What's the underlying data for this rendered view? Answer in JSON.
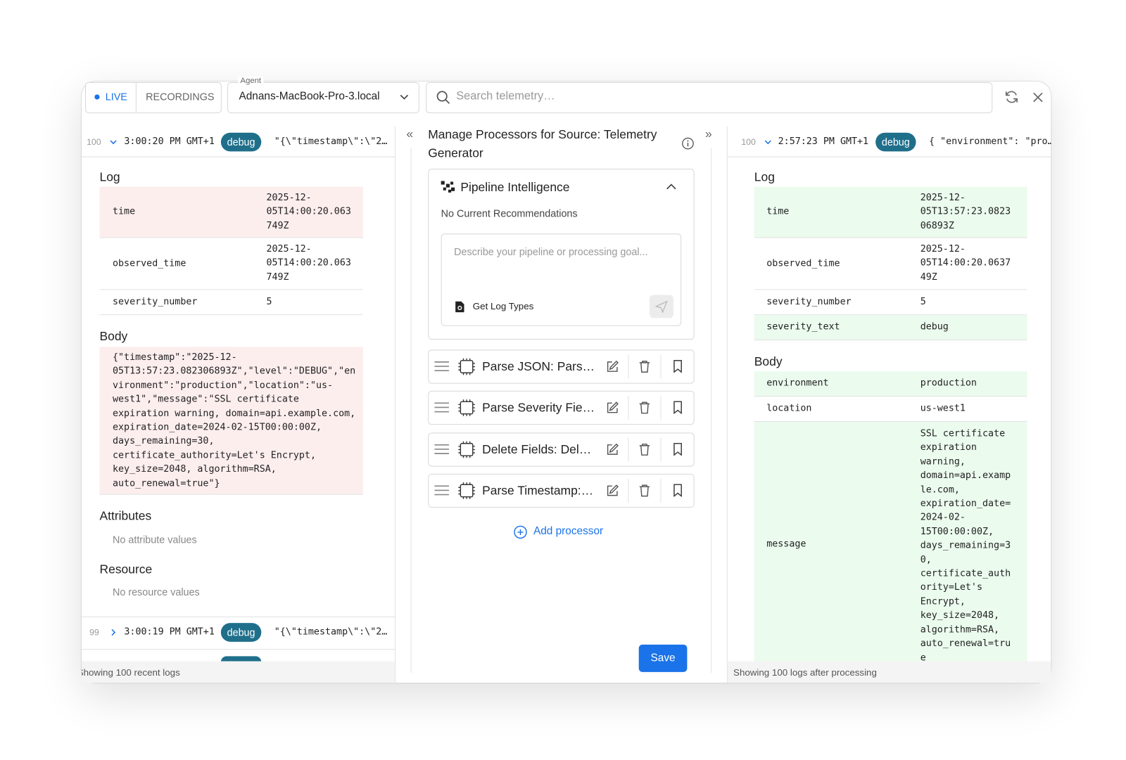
{
  "toolbar": {
    "live": "LIVE",
    "recordings": "RECORDINGS",
    "agent_label": "Agent",
    "agent_value": "Adnans-MacBook-Pro-3.local",
    "search_placeholder": "Search telemetry…"
  },
  "left": {
    "entries": [
      {
        "index": 100,
        "time": "3:00:20 PM GMT+1",
        "level": "debug",
        "preview": "\"{\\\"timestamp\\\":\\\"2…"
      },
      {
        "index": 99,
        "time": "3:00:19 PM GMT+1",
        "level": "debug",
        "preview": "\"{\\\"timestamp\\\":\\\"2…"
      }
    ],
    "log_heading": "Log",
    "log_rows": [
      {
        "key": "time",
        "value": "2025-12-05T14:00:20.063749Z"
      },
      {
        "key": "observed_time",
        "value": "2025-12-05T14:00:20.063749Z"
      },
      {
        "key": "severity_number",
        "value": 5
      }
    ],
    "body_heading": "Body",
    "body": "{\"timestamp\":\"2025-12-05T13:57:23.082306893Z\",\"level\":\"DEBUG\",\"environment\":\"production\",\"location\":\"us-west1\",\"message\":\"SSL certificate expiration warning, domain=api.example.com, expiration_date=2024-02-15T00:00:00Z, days_remaining=30, certificate_authority=Let's Encrypt, key_size=2048, algorithm=RSA, auto_renewal=true\"}",
    "attributes_heading": "Attributes",
    "attributes_empty": "No attribute values",
    "resource_heading": "Resource",
    "resource_empty": "No resource values",
    "footer": "Showing 100 recent logs"
  },
  "center": {
    "title": "Manage Processors for Source: Telemetry Generator",
    "intelligence_title": "Pipeline Intelligence",
    "recommendations": "No Current Recommendations",
    "prompt_placeholder": "Describe your pipeline or processing goal...",
    "get_log_types": "Get Log Types",
    "processors": [
      "Parse JSON: Pars…",
      "Parse Severity Fie…",
      "Delete Fields: Del…",
      "Parse Timestamp:…"
    ],
    "add_processor": "Add processor",
    "save": "Save"
  },
  "right": {
    "entry": {
      "index": 100,
      "time": "2:57:23 PM GMT+1",
      "level": "debug",
      "preview": "{ \"environment\": \"pro…"
    },
    "log_heading": "Log",
    "log_rows": [
      {
        "key": "time",
        "value": "2025-12-05T13:57:23.082306893Z"
      },
      {
        "key": "observed_time",
        "value": "2025-12-05T14:00:20.063749Z"
      },
      {
        "key": "severity_number",
        "value": 5
      },
      {
        "key": "severity_text",
        "value": "debug"
      }
    ],
    "body_heading": "Body",
    "body_rows": [
      {
        "key": "environment",
        "value": "production"
      },
      {
        "key": "location",
        "value": "us-west1"
      },
      {
        "key": "message",
        "value": "SSL certificate expiration warning, domain=api.example.com, expiration_date=2024-02-15T00:00:00Z, days_remaining=30, certificate_authority=Let's Encrypt, key_size=2048, algorithm=RSA, auto_renewal=true"
      }
    ],
    "footer": "Showing 100 logs after processing"
  }
}
